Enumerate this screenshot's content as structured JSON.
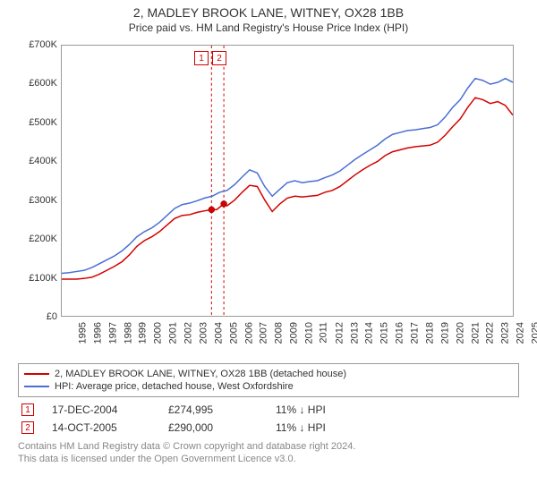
{
  "title": "2, MADLEY BROOK LANE, WITNEY, OX28 1BB",
  "subtitle": "Price paid vs. HM Land Registry's House Price Index (HPI)",
  "chart": {
    "type": "line",
    "background_color": "#ffffff",
    "border_color": "#999999",
    "x_axis": {
      "min": 1995,
      "max": 2025,
      "ticks": [
        1995,
        1996,
        1997,
        1998,
        1999,
        2000,
        2001,
        2002,
        2003,
        2004,
        2005,
        2006,
        2007,
        2008,
        2009,
        2010,
        2011,
        2012,
        2013,
        2014,
        2015,
        2016,
        2017,
        2018,
        2019,
        2020,
        2021,
        2022,
        2023,
        2024,
        2025
      ],
      "tick_label_rotation_deg": -90,
      "tick_fontsize": 11
    },
    "y_axis": {
      "min": 0,
      "max": 700000,
      "ticks": [
        0,
        100000,
        200000,
        300000,
        400000,
        500000,
        600000,
        700000
      ],
      "tick_labels": [
        "£0",
        "£100K",
        "£200K",
        "£300K",
        "£400K",
        "£500K",
        "£600K",
        "£700K"
      ],
      "tick_fontsize": 11
    },
    "series": [
      {
        "name": "price_paid",
        "label": "2, MADLEY BROOK LANE, WITNEY, OX28 1BB (detached house)",
        "color": "#d40000",
        "line_width": 1.5,
        "data": [
          [
            1995,
            95000
          ],
          [
            1995.5,
            95000
          ],
          [
            1996,
            95000
          ],
          [
            1996.5,
            97000
          ],
          [
            1997,
            100000
          ],
          [
            1997.5,
            108000
          ],
          [
            1998,
            118000
          ],
          [
            1998.5,
            128000
          ],
          [
            1999,
            140000
          ],
          [
            1999.5,
            158000
          ],
          [
            2000,
            180000
          ],
          [
            2000.5,
            195000
          ],
          [
            2001,
            205000
          ],
          [
            2001.5,
            218000
          ],
          [
            2002,
            235000
          ],
          [
            2002.5,
            252000
          ],
          [
            2003,
            260000
          ],
          [
            2003.5,
            262000
          ],
          [
            2004,
            268000
          ],
          [
            2004.5,
            272000
          ],
          [
            2004.96,
            274995
          ],
          [
            2005.3,
            275000
          ],
          [
            2005.78,
            290000
          ],
          [
            2006,
            285000
          ],
          [
            2006.5,
            300000
          ],
          [
            2007,
            320000
          ],
          [
            2007.5,
            338000
          ],
          [
            2008,
            335000
          ],
          [
            2008.5,
            300000
          ],
          [
            2009,
            270000
          ],
          [
            2009.5,
            290000
          ],
          [
            2010,
            305000
          ],
          [
            2010.5,
            310000
          ],
          [
            2011,
            308000
          ],
          [
            2011.5,
            310000
          ],
          [
            2012,
            312000
          ],
          [
            2012.5,
            320000
          ],
          [
            2013,
            325000
          ],
          [
            2013.5,
            335000
          ],
          [
            2014,
            350000
          ],
          [
            2014.5,
            365000
          ],
          [
            2015,
            378000
          ],
          [
            2015.5,
            390000
          ],
          [
            2016,
            400000
          ],
          [
            2016.5,
            415000
          ],
          [
            2017,
            425000
          ],
          [
            2017.5,
            430000
          ],
          [
            2018,
            435000
          ],
          [
            2018.5,
            438000
          ],
          [
            2019,
            440000
          ],
          [
            2019.5,
            442000
          ],
          [
            2020,
            450000
          ],
          [
            2020.5,
            468000
          ],
          [
            2021,
            490000
          ],
          [
            2021.5,
            510000
          ],
          [
            2022,
            540000
          ],
          [
            2022.5,
            565000
          ],
          [
            2023,
            560000
          ],
          [
            2023.5,
            550000
          ],
          [
            2024,
            555000
          ],
          [
            2024.5,
            545000
          ],
          [
            2025,
            520000
          ]
        ]
      },
      {
        "name": "hpi",
        "label": "HPI: Average price, detached house, West Oxfordshire",
        "color": "#4a6fd4",
        "line_width": 1.5,
        "data": [
          [
            1995,
            110000
          ],
          [
            1995.5,
            112000
          ],
          [
            1996,
            115000
          ],
          [
            1996.5,
            118000
          ],
          [
            1997,
            125000
          ],
          [
            1997.5,
            135000
          ],
          [
            1998,
            145000
          ],
          [
            1998.5,
            155000
          ],
          [
            1999,
            168000
          ],
          [
            1999.5,
            185000
          ],
          [
            2000,
            205000
          ],
          [
            2000.5,
            218000
          ],
          [
            2001,
            228000
          ],
          [
            2001.5,
            242000
          ],
          [
            2002,
            260000
          ],
          [
            2002.5,
            278000
          ],
          [
            2003,
            288000
          ],
          [
            2003.5,
            292000
          ],
          [
            2004,
            298000
          ],
          [
            2004.5,
            305000
          ],
          [
            2005,
            310000
          ],
          [
            2005.5,
            320000
          ],
          [
            2006,
            325000
          ],
          [
            2006.5,
            340000
          ],
          [
            2007,
            360000
          ],
          [
            2007.5,
            378000
          ],
          [
            2008,
            370000
          ],
          [
            2008.5,
            335000
          ],
          [
            2009,
            310000
          ],
          [
            2009.5,
            328000
          ],
          [
            2010,
            345000
          ],
          [
            2010.5,
            350000
          ],
          [
            2011,
            345000
          ],
          [
            2011.5,
            348000
          ],
          [
            2012,
            350000
          ],
          [
            2012.5,
            358000
          ],
          [
            2013,
            365000
          ],
          [
            2013.5,
            375000
          ],
          [
            2014,
            390000
          ],
          [
            2014.5,
            405000
          ],
          [
            2015,
            418000
          ],
          [
            2015.5,
            430000
          ],
          [
            2016,
            442000
          ],
          [
            2016.5,
            458000
          ],
          [
            2017,
            470000
          ],
          [
            2017.5,
            475000
          ],
          [
            2018,
            480000
          ],
          [
            2018.5,
            482000
          ],
          [
            2019,
            485000
          ],
          [
            2019.5,
            488000
          ],
          [
            2020,
            495000
          ],
          [
            2020.5,
            515000
          ],
          [
            2021,
            540000
          ],
          [
            2021.5,
            560000
          ],
          [
            2022,
            590000
          ],
          [
            2022.5,
            615000
          ],
          [
            2023,
            610000
          ],
          [
            2023.5,
            600000
          ],
          [
            2024,
            605000
          ],
          [
            2024.5,
            615000
          ],
          [
            2025,
            605000
          ]
        ]
      }
    ],
    "sale_markers": [
      {
        "n": 1,
        "x": 2004.96,
        "y": 274995,
        "line_color": "#d40000",
        "fill_color": "#d40000"
      },
      {
        "n": 2,
        "x": 2005.78,
        "y": 290000,
        "line_color": "#d40000",
        "fill_color": "#d40000"
      }
    ],
    "sale_marker_line_style": "dashed",
    "mini_legend_border": "#d40000"
  },
  "legend": {
    "border_color": "#999999",
    "items": [
      {
        "color": "#d40000",
        "label": "2, MADLEY BROOK LANE, WITNEY, OX28 1BB (detached house)"
      },
      {
        "color": "#4a6fd4",
        "label": "HPI: Average price, detached house, West Oxfordshire"
      }
    ]
  },
  "sales": [
    {
      "n": "1",
      "border_color": "#d40000",
      "date": "17-DEC-2004",
      "price": "£274,995",
      "delta": "11% ↓ HPI"
    },
    {
      "n": "2",
      "border_color": "#d40000",
      "date": "14-OCT-2005",
      "price": "£290,000",
      "delta": "11% ↓ HPI"
    }
  ],
  "footer_line1": "Contains HM Land Registry data © Crown copyright and database right 2024.",
  "footer_line2": "This data is licensed under the Open Government Licence v3.0."
}
